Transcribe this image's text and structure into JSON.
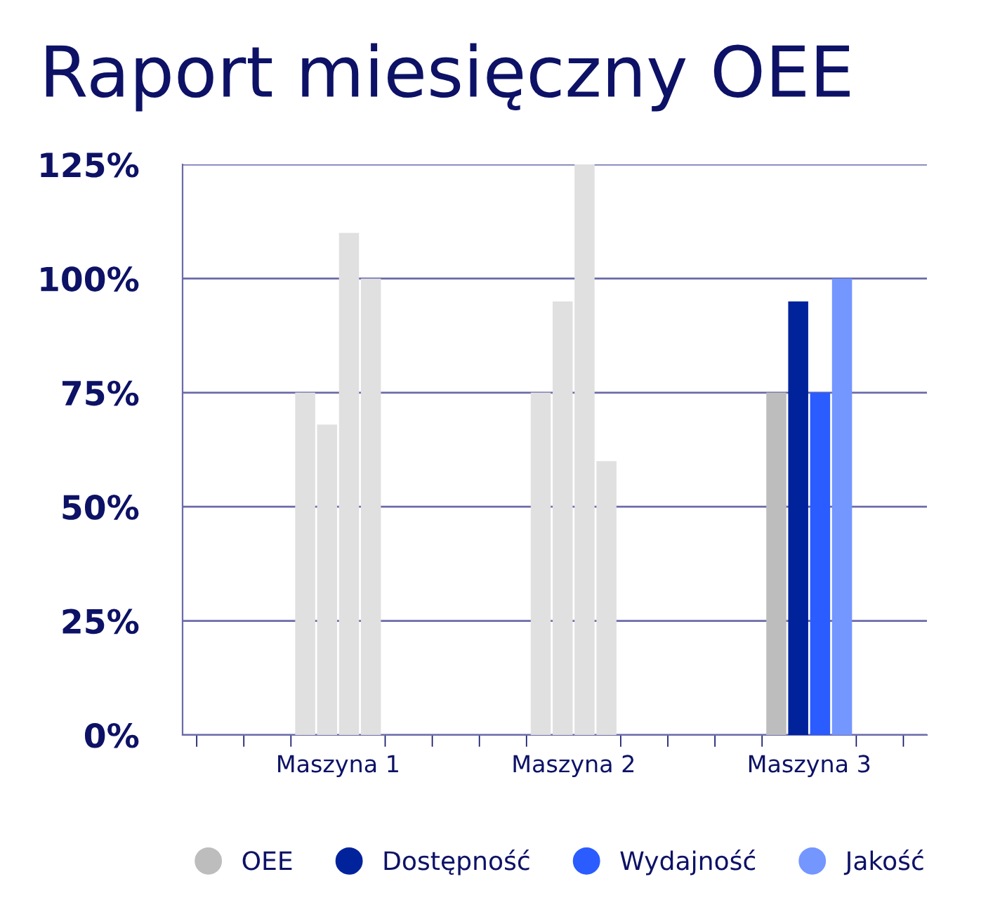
{
  "chart_data": {
    "type": "bar",
    "title": "Raport miesięczny OEE",
    "categories": [
      "Maszyna 1",
      "Maszyna 2",
      "Maszyna 3"
    ],
    "series": [
      {
        "name": "OEE",
        "color": "#bdbdbd",
        "colors": [
          "#e0e0e0",
          "#e0e0e0",
          "#bdbdbd"
        ],
        "values": [
          75,
          75,
          75
        ]
      },
      {
        "name": "Dostępność",
        "color": "#00239c",
        "colors": [
          "#e0e0e0",
          "#e0e0e0",
          "#00239c"
        ],
        "values": [
          68,
          95,
          95
        ]
      },
      {
        "name": "Wydajność",
        "color": "#2a5cff",
        "colors": [
          "#e0e0e0",
          "#e0e0e0",
          "#2a5cff"
        ],
        "values": [
          110,
          125,
          75
        ]
      },
      {
        "name": "Jakość",
        "color": "#7496ff",
        "colors": [
          "#e0e0e0",
          "#e0e0e0",
          "#7496ff"
        ],
        "values": [
          100,
          60,
          100
        ]
      }
    ],
    "ylim": [
      0,
      125
    ],
    "yticks": [
      {
        "value": 0,
        "label": "0%"
      },
      {
        "value": 25,
        "label": "25%"
      },
      {
        "value": 50,
        "label": "50%"
      },
      {
        "value": 75,
        "label": "75%"
      },
      {
        "value": 100,
        "label": "100%"
      },
      {
        "value": 125,
        "label": "125%"
      }
    ],
    "grid": "y",
    "legend": "bottom"
  }
}
